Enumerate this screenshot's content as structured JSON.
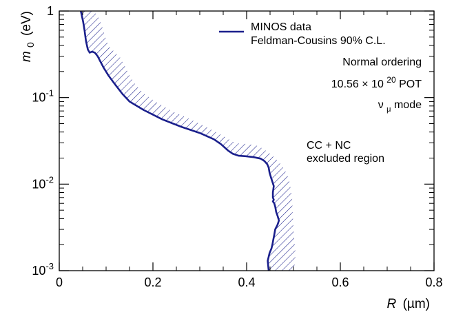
{
  "chart_data": {
    "type": "line",
    "xlabel": "R (µm)",
    "xlabel_var": "R",
    "xlabel_unit": "(µm)",
    "ylabel": "m0 (eV)",
    "ylabel_var": "m",
    "ylabel_sub": "0",
    "ylabel_unit": "(eV)",
    "xlim": [
      0,
      0.8
    ],
    "ylim": [
      0.001,
      1
    ],
    "yscale": "log",
    "grid": false,
    "legend_position": "top-right",
    "x_ticks": [
      {
        "value": 0,
        "label": "0"
      },
      {
        "value": 0.2,
        "label": "0.2"
      },
      {
        "value": 0.4,
        "label": "0.4"
      },
      {
        "value": 0.6,
        "label": "0.6"
      },
      {
        "value": 0.8,
        "label": "0.8"
      }
    ],
    "y_ticks": [
      {
        "value": 1,
        "base": "1",
        "exp": ""
      },
      {
        "value": 0.1,
        "base": "10",
        "exp": "-1"
      },
      {
        "value": 0.01,
        "base": "10",
        "exp": "-2"
      },
      {
        "value": 0.001,
        "base": "10",
        "exp": "-3"
      }
    ],
    "series": [
      {
        "name": "MINOS data Feldman-Cousins 90% C.L.",
        "legend_lines": [
          "MINOS data",
          "Feldman-Cousins 90% C.L."
        ],
        "color": "#1a1f8c",
        "points": [
          [
            0.447,
            0.001
          ],
          [
            0.445,
            0.0013
          ],
          [
            0.449,
            0.0016
          ],
          [
            0.453,
            0.0018
          ],
          [
            0.455,
            0.002
          ],
          [
            0.457,
            0.0023
          ],
          [
            0.459,
            0.0026
          ],
          [
            0.461,
            0.003
          ],
          [
            0.466,
            0.0034
          ],
          [
            0.469,
            0.0038
          ],
          [
            0.466,
            0.0043
          ],
          [
            0.463,
            0.0048
          ],
          [
            0.461,
            0.0055
          ],
          [
            0.459,
            0.006
          ],
          [
            0.456,
            0.0063
          ],
          [
            0.458,
            0.0066
          ],
          [
            0.456,
            0.007
          ],
          [
            0.456,
            0.008
          ],
          [
            0.458,
            0.0095
          ],
          [
            0.453,
            0.0115
          ],
          [
            0.449,
            0.0135
          ],
          [
            0.447,
            0.0155
          ],
          [
            0.444,
            0.017
          ],
          [
            0.438,
            0.0185
          ],
          [
            0.43,
            0.0197
          ],
          [
            0.415,
            0.0205
          ],
          [
            0.398,
            0.021
          ],
          [
            0.383,
            0.0213
          ],
          [
            0.37,
            0.0225
          ],
          [
            0.36,
            0.0245
          ],
          [
            0.345,
            0.029
          ],
          [
            0.33,
            0.033
          ],
          [
            0.3,
            0.039
          ],
          [
            0.26,
            0.046
          ],
          [
            0.22,
            0.056
          ],
          [
            0.18,
            0.072
          ],
          [
            0.15,
            0.09
          ],
          [
            0.135,
            0.11
          ],
          [
            0.12,
            0.14
          ],
          [
            0.105,
            0.18
          ],
          [
            0.095,
            0.22
          ],
          [
            0.088,
            0.26
          ],
          [
            0.082,
            0.3
          ],
          [
            0.076,
            0.33
          ],
          [
            0.07,
            0.34
          ],
          [
            0.065,
            0.33
          ],
          [
            0.061,
            0.36
          ],
          [
            0.057,
            0.45
          ],
          [
            0.054,
            0.6
          ],
          [
            0.051,
            0.75
          ],
          [
            0.048,
            0.9
          ],
          [
            0.046,
            1.0
          ]
        ]
      }
    ],
    "hatch_band": {
      "meaning": "excluded side",
      "outer_edge": [
        [
          0.5,
          0.001
        ],
        [
          0.504,
          0.0013
        ],
        [
          0.504,
          0.0017
        ],
        [
          0.502,
          0.0022
        ],
        [
          0.5,
          0.003
        ],
        [
          0.498,
          0.005
        ],
        [
          0.497,
          0.007
        ],
        [
          0.494,
          0.009
        ],
        [
          0.49,
          0.0115
        ],
        [
          0.483,
          0.014
        ],
        [
          0.475,
          0.0165
        ],
        [
          0.463,
          0.0195
        ],
        [
          0.45,
          0.0225
        ],
        [
          0.438,
          0.025
        ],
        [
          0.425,
          0.0275
        ],
        [
          0.405,
          0.029
        ],
        [
          0.383,
          0.0295
        ],
        [
          0.37,
          0.031
        ],
        [
          0.35,
          0.036
        ],
        [
          0.32,
          0.044
        ],
        [
          0.28,
          0.056
        ],
        [
          0.24,
          0.07
        ],
        [
          0.205,
          0.09
        ],
        [
          0.18,
          0.112
        ],
        [
          0.163,
          0.14
        ],
        [
          0.15,
          0.18
        ],
        [
          0.14,
          0.23
        ],
        [
          0.13,
          0.29
        ],
        [
          0.117,
          0.34
        ],
        [
          0.108,
          0.38
        ],
        [
          0.101,
          0.45
        ],
        [
          0.096,
          0.55
        ],
        [
          0.092,
          0.65
        ],
        [
          0.088,
          0.75
        ],
        [
          0.083,
          0.86
        ],
        [
          0.077,
          0.95
        ],
        [
          0.07,
          1.0
        ]
      ]
    },
    "annotations": [
      {
        "id": "normal-ordering",
        "text": "Normal ordering"
      },
      {
        "id": "pot",
        "prefix": "10.56 × 10",
        "sup": "20",
        "suffix": " POT"
      },
      {
        "id": "mode",
        "base": "ν",
        "sub": "μ",
        "suffix": " mode"
      },
      {
        "id": "region-line1",
        "text": "CC + NC"
      },
      {
        "id": "region-line2",
        "text": "excluded region"
      }
    ]
  }
}
